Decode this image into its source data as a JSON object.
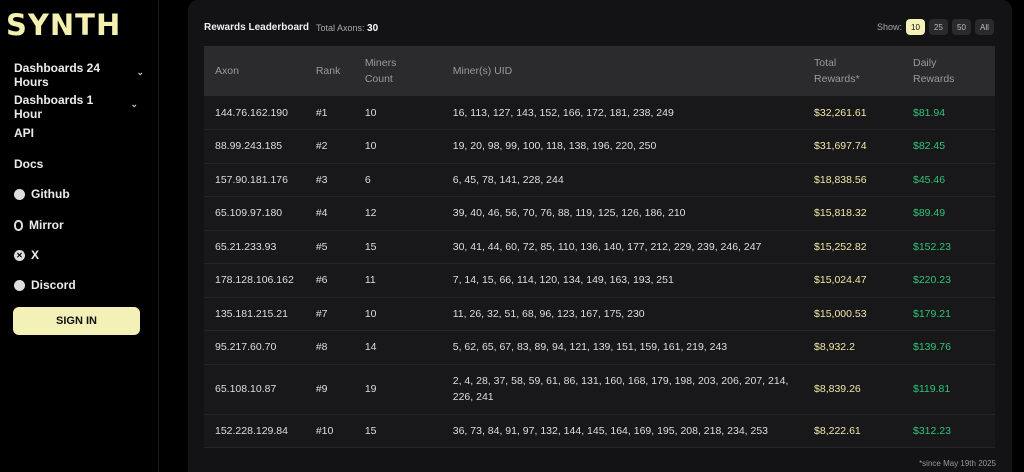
{
  "sidebar": {
    "logo": "SYNTH",
    "items": [
      {
        "label": "Dashboards 24 Hours",
        "icon": "chevron-down-icon"
      },
      {
        "label": "Dashboards 1 Hour",
        "icon": "chevron-down-icon"
      },
      {
        "label": "API"
      },
      {
        "label": "Docs"
      },
      {
        "label": "Github",
        "icon": "github-icon"
      },
      {
        "label": "Mirror",
        "icon": "mirror-icon"
      },
      {
        "label": "X",
        "icon": "x-icon"
      },
      {
        "label": "Discord",
        "icon": "discord-icon"
      }
    ],
    "signin": "SIGN IN"
  },
  "leaderboard": {
    "title": "Rewards Leaderboard",
    "total_label": "Total Axons:",
    "total_value": "30",
    "show_label": "Show:",
    "show_options": [
      "10",
      "25",
      "50",
      "All"
    ],
    "show_selected": "10",
    "columns": [
      "Axon",
      "Rank",
      "Miners Count",
      "Miner(s) UID",
      "Total Rewards*",
      "Daily Rewards"
    ],
    "rows": [
      [
        "144.76.162.190",
        "#1",
        "10",
        "16, 113, 127, 143, 152, 166, 172, 181, 238, 249",
        "$32,261.61",
        "$81.94"
      ],
      [
        "88.99.243.185",
        "#2",
        "10",
        "19, 20, 98, 99, 100, 118, 138, 196, 220, 250",
        "$31,697.74",
        "$82.45"
      ],
      [
        "157.90.181.176",
        "#3",
        "6",
        "6, 45, 78, 141, 228, 244",
        "$18,838.56",
        "$45.46"
      ],
      [
        "65.109.97.180",
        "#4",
        "12",
        "39, 40, 46, 56, 70, 76, 88, 119, 125, 126, 186, 210",
        "$15,818.32",
        "$89.49"
      ],
      [
        "65.21.233.93",
        "#5",
        "15",
        "30, 41, 44, 60, 72, 85, 110, 136, 140, 177, 212, 229, 239, 246, 247",
        "$15,252.82",
        "$152.23"
      ],
      [
        "178.128.106.162",
        "#6",
        "11",
        "7, 14, 15, 66, 114, 120, 134, 149, 163, 193, 251",
        "$15,024.47",
        "$220.23"
      ],
      [
        "135.181.215.21",
        "#7",
        "10",
        "11, 26, 32, 51, 68, 96, 123, 167, 175, 230",
        "$15,000.53",
        "$179.21"
      ],
      [
        "95.217.60.70",
        "#8",
        "14",
        "5, 62, 65, 67, 83, 89, 94, 121, 139, 151, 159, 161, 219, 243",
        "$8,932.2",
        "$139.76"
      ],
      [
        "65.108.10.87",
        "#9",
        "19",
        "2, 4, 28, 37, 58, 59, 61, 86, 131, 160, 168, 179, 198, 203, 206, 207, 214, 226, 241",
        "$8,839.26",
        "$119.81"
      ],
      [
        "152.228.129.84",
        "#10",
        "15",
        "36, 73, 84, 91, 97, 132, 144, 145, 164, 169, 195, 208, 218, 234, 253",
        "$8,222.61",
        "$312.23"
      ]
    ],
    "footnote": "*since May 19th 2025"
  },
  "colors": {
    "accent": "#f3f0b8",
    "total_rewards": "#f0e6a6",
    "daily_rewards": "#2fc478"
  }
}
